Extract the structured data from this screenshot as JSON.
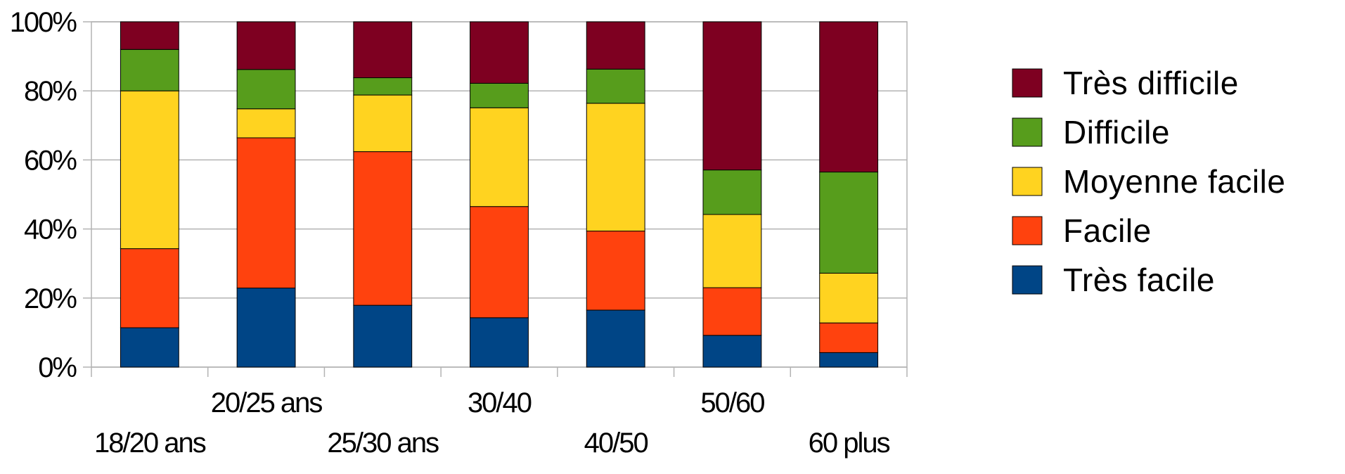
{
  "chart_data": {
    "type": "bar",
    "stacked": true,
    "percent": true,
    "categories": [
      "18/20 ans",
      "20/25 ans",
      "25/30 ans",
      "30/40",
      "40/50",
      "50/60",
      "60 plus"
    ],
    "series": [
      {
        "name": "Très facile",
        "color": "#004586",
        "values": [
          11.4,
          22.9,
          17.9,
          14.3,
          16.5,
          9.2,
          4.2
        ]
      },
      {
        "name": "Facile",
        "color": "#ff420e",
        "values": [
          22.9,
          43.5,
          44.5,
          32.2,
          22.9,
          13.8,
          8.6
        ]
      },
      {
        "name": "Moyenne facile",
        "color": "#ffd320",
        "values": [
          45.7,
          8.4,
          16.4,
          28.6,
          37.0,
          21.2,
          14.4
        ]
      },
      {
        "name": "Difficile",
        "color": "#579d1c",
        "values": [
          12.0,
          11.4,
          5.0,
          7.1,
          9.9,
          12.9,
          29.3
        ]
      },
      {
        "name": "Très difficile",
        "color": "#7e0021",
        "values": [
          8.0,
          13.8,
          16.2,
          17.8,
          13.7,
          42.9,
          43.5
        ]
      }
    ],
    "ylim": [
      0,
      100
    ],
    "yticks": [
      "0%",
      "20%",
      "40%",
      "60%",
      "80%",
      "100%"
    ],
    "grid": true,
    "legend_position": "right",
    "legend_order": [
      "Très difficile",
      "Difficile",
      "Moyenne facile",
      "Facile",
      "Très facile"
    ]
  }
}
